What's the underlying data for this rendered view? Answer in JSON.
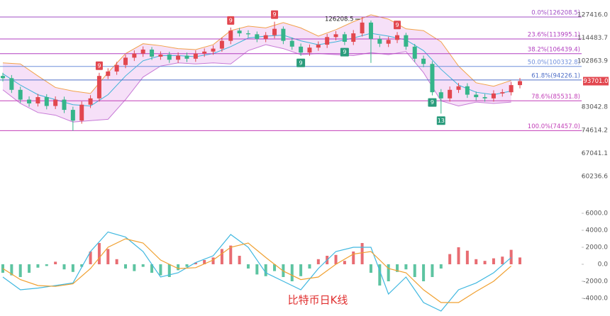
{
  "chart_data": [
    {
      "type": "candlestick",
      "title": "比特币日K线",
      "log_scale": true,
      "ylim": [
        52600,
        136600
      ],
      "yticks": [
        {
          "value": 127416,
          "label": "127416.0"
        },
        {
          "value": 114483.7,
          "label": "114483.7"
        },
        {
          "value": 102863.9,
          "label": "102863.9"
        },
        {
          "value": 83042.8,
          "label": "83042.8"
        },
        {
          "value": 74614.2,
          "label": "74614.2"
        },
        {
          "value": 67041.1,
          "label": "67041.1"
        },
        {
          "value": 60236.6,
          "label": "60236.6"
        }
      ],
      "up_color": "#e2474f",
      "down_color": "#35b58a",
      "open": [
        96000,
        95000,
        90000,
        86000,
        84500,
        87000,
        83500,
        86000,
        82000,
        78000,
        84000,
        86500,
        96000,
        98000,
        101000,
        104500,
        106500,
        108500,
        105000,
        106000,
        103500,
        105500,
        104000,
        106500,
        107500,
        109000,
        113000,
        118500,
        117000,
        116500,
        114000,
        116000,
        119500,
        113000,
        110000,
        107000,
        109500,
        111000,
        115000,
        116500,
        112500,
        117000,
        123000,
        114000,
        111500,
        113500,
        116000,
        110000,
        104000,
        101500,
        89000,
        86500,
        90000,
        91500,
        88000,
        87000,
        86500,
        88500,
        89000,
        92000
      ],
      "high": [
        97400,
        96400,
        91300,
        87300,
        88300,
        88200,
        87300,
        87200,
        83200,
        85300,
        87800,
        97400,
        99500,
        102500,
        106000,
        108100,
        110100,
        109800,
        107600,
        107400,
        107100,
        107000,
        108100,
        109100,
        110600,
        114700,
        120200,
        120000,
        118700,
        118000,
        117700,
        123500,
        120800,
        114700,
        111600,
        111100,
        112700,
        116700,
        118200,
        117800,
        118800,
        126208.5,
        124200,
        115700,
        115200,
        117700,
        117300,
        111400,
        105500,
        102800,
        90300,
        91400,
        92900,
        92800,
        89300,
        88300,
        89800,
        90300,
        93400,
        95100
      ],
      "low": [
        93600,
        88700,
        84700,
        83200,
        83300,
        82200,
        82300,
        80800,
        74457,
        76900,
        82700,
        85200,
        94600,
        96500,
        99500,
        102900,
        104900,
        103400,
        103500,
        102000,
        102000,
        102400,
        102500,
        104900,
        105900,
        107400,
        111300,
        115300,
        114800,
        112300,
        112300,
        114300,
        111300,
        108400,
        105400,
        105400,
        107900,
        109300,
        113300,
        110800,
        110800,
        115300,
        102000,
        109800,
        109800,
        111800,
        108400,
        102400,
        100000,
        87700,
        80600,
        85200,
        88700,
        86700,
        85700,
        85200,
        85200,
        87200,
        87700,
        90600
      ],
      "close": [
        95000,
        90000,
        86000,
        84500,
        87000,
        83500,
        86000,
        82000,
        78000,
        84000,
        86500,
        96000,
        98000,
        101000,
        104500,
        106500,
        108500,
        105000,
        106000,
        103500,
        105500,
        104000,
        106500,
        107500,
        109000,
        113000,
        118500,
        117000,
        116500,
        114000,
        116000,
        119500,
        113000,
        110000,
        107000,
        109500,
        111000,
        115000,
        116500,
        112500,
        117000,
        123000,
        114000,
        111500,
        113500,
        116000,
        110000,
        104000,
        101500,
        89000,
        86500,
        90000,
        91500,
        88000,
        87000,
        86500,
        88500,
        89000,
        92000,
        93701
      ],
      "bands": {
        "x": [
          0,
          2,
          4,
          6,
          8,
          10,
          12,
          14,
          16,
          18,
          20,
          22,
          24,
          26,
          28,
          30,
          32,
          34,
          36,
          38,
          40,
          42,
          44,
          46,
          48,
          50,
          52,
          54,
          56,
          58
        ],
        "upper": [
          102000,
          101500,
          96000,
          91000,
          89500,
          88500,
          97500,
          106500,
          111500,
          110500,
          109000,
          108500,
          111000,
          118500,
          121000,
          120000,
          123000,
          120000,
          115500,
          119000,
          123500,
          127500,
          125000,
          119500,
          118500,
          112500,
          100500,
          93000,
          91500,
          94000
        ],
        "middle": [
          97000,
          92000,
          88000,
          86000,
          84000,
          83500,
          88000,
          96000,
          103000,
          105500,
          105500,
          105000,
          106500,
          110000,
          114500,
          115500,
          116000,
          113000,
          111000,
          112500,
          114500,
          117000,
          115500,
          113500,
          108000,
          99000,
          92000,
          89000,
          88000,
          89500
        ],
        "lower": [
          90000,
          84500,
          81000,
          80000,
          77500,
          78000,
          78500,
          86000,
          95500,
          100500,
          102000,
          101500,
          102000,
          101500,
          108000,
          111000,
          109000,
          106000,
          106500,
          106000,
          105500,
          107000,
          106000,
          107500,
          97500,
          85500,
          83500,
          85000,
          84500,
          85000
        ],
        "upper_color": "#f2a24a",
        "middle_color": "#3fb3d8",
        "lower_color": "#c77ad6",
        "fill": "#f6e0f8"
      },
      "fib_levels": [
        {
          "label": "0.0%(126208.5)",
          "value": 126208.5,
          "color": "#a24fc6"
        },
        {
          "label": "23.6%(113995.1)",
          "value": 113995.1,
          "color": "#b23fc0"
        },
        {
          "label": "38.2%(106439.4)",
          "value": 106439.4,
          "color": "#b23fc0"
        },
        {
          "label": "50.0%(100332.8)",
          "value": 100332.8,
          "color": "#6f8fdc"
        },
        {
          "label": "61.8%(94226.1)",
          "value": 94226.1,
          "color": "#4f6fc8"
        },
        {
          "label": "78.6%(85531.8)",
          "value": 85531.8,
          "color": "#c23fb8"
        },
        {
          "label": "100.0%(74457.0)",
          "value": 74457.0,
          "color": "#c23fb8"
        }
      ],
      "high_annotation": "126208.5",
      "last_price": {
        "value": 93701,
        "label": "93701.0"
      },
      "sell_setup": [
        null,
        null,
        null,
        null,
        null,
        null,
        null,
        null,
        null,
        null,
        null,
        "9",
        null,
        null,
        null,
        null,
        null,
        null,
        null,
        null,
        null,
        null,
        null,
        null,
        null,
        null,
        "9",
        null,
        null,
        null,
        null,
        "9",
        null,
        null,
        null,
        null,
        null,
        null,
        null,
        null,
        null,
        null,
        null,
        null,
        null,
        "9",
        null,
        null,
        null,
        null,
        null,
        null,
        null,
        null,
        null,
        null,
        null,
        null,
        null,
        null
      ],
      "buy_setup": [
        null,
        null,
        null,
        null,
        null,
        null,
        null,
        null,
        null,
        null,
        null,
        null,
        null,
        null,
        null,
        null,
        null,
        null,
        null,
        null,
        null,
        null,
        null,
        null,
        null,
        null,
        null,
        null,
        null,
        null,
        null,
        null,
        null,
        null,
        "9",
        null,
        null,
        null,
        null,
        "9",
        null,
        null,
        null,
        null,
        null,
        null,
        null,
        null,
        null,
        "9",
        "13",
        null,
        null,
        null,
        null,
        null,
        null,
        null,
        null,
        null
      ]
    },
    {
      "type": "macd",
      "ylim": [
        -6000,
        7000
      ],
      "yticks": [
        {
          "value": 6000,
          "label": "6000.0"
        },
        {
          "value": 4000,
          "label": "4000.0"
        },
        {
          "value": 2000,
          "label": "2000.0"
        },
        {
          "value": 0,
          "label": "0.0"
        },
        {
          "value": -2000,
          "label": "-2000.0"
        },
        {
          "value": -4000,
          "label": "-4000.0"
        }
      ],
      "up_color": "#e2474f",
      "down_color": "#35b58a",
      "dif_color": "#40b8e0",
      "dea_color": "#f0a030",
      "histogram": [
        -1000,
        -1300,
        -1500,
        -1000,
        -400,
        -200,
        300,
        -600,
        -900,
        -300,
        1500,
        2500,
        1800,
        600,
        -500,
        -800,
        -300,
        -1000,
        -1300,
        -1500,
        -700,
        -300,
        200,
        500,
        800,
        1800,
        2200,
        1000,
        -500,
        -1200,
        -1400,
        -800,
        -1500,
        -2000,
        -1400,
        -500,
        600,
        1000,
        1100,
        400,
        1500,
        2500,
        -1000,
        -2500,
        -2000,
        -900,
        -600,
        -1500,
        -2000,
        -1500,
        -500,
        1200,
        2000,
        1600,
        600,
        400,
        700,
        900,
        1700,
        800
      ],
      "x": [
        0,
        2,
        4,
        6,
        8,
        10,
        12,
        14,
        16,
        18,
        20,
        22,
        24,
        26,
        28,
        30,
        32,
        34,
        36,
        38,
        40,
        42,
        44,
        46,
        48,
        50,
        52,
        54,
        56,
        58
      ],
      "dif": [
        -1500,
        -3000,
        -2800,
        -2500,
        -2200,
        1500,
        3800,
        3200,
        1500,
        -1500,
        -1000,
        200,
        1000,
        3500,
        2000,
        -1000,
        -2000,
        -3000,
        -500,
        1500,
        2000,
        2000,
        -3500,
        -1500,
        -4500,
        -5500,
        -3000,
        -2200,
        -1000,
        800
      ],
      "dea": [
        -500,
        -1800,
        -2500,
        -2600,
        -2300,
        -500,
        2000,
        3000,
        2500,
        500,
        -500,
        -400,
        500,
        2000,
        2500,
        800,
        -800,
        -1800,
        -1500,
        0,
        1200,
        1500,
        -500,
        -1000,
        -3000,
        -4500,
        -4500,
        -3200,
        -2000,
        -200
      ]
    }
  ]
}
